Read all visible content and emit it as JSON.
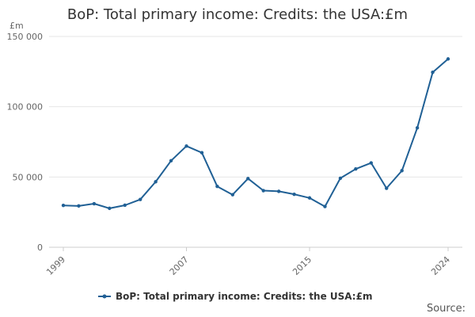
{
  "chart_data": {
    "type": "line",
    "title": "BoP: Total primary income: Credits: the USA:£m",
    "ylabel": "£m",
    "xlabel": "",
    "x": [
      1999,
      2000,
      2001,
      2002,
      2003,
      2004,
      2005,
      2006,
      2007,
      2008,
      2009,
      2010,
      2011,
      2012,
      2013,
      2014,
      2015,
      2016,
      2017,
      2018,
      2019,
      2020,
      2021,
      2022,
      2023,
      2024
    ],
    "series": [
      {
        "name": "BoP: Total primary income: Credits: the USA:£m",
        "values": [
          29800,
          29400,
          31000,
          27700,
          29900,
          34000,
          46600,
          61600,
          72000,
          67300,
          43300,
          37400,
          48900,
          40300,
          39800,
          37700,
          35100,
          29000,
          49100,
          55700,
          60000,
          42000,
          54500,
          85000,
          124500,
          134000
        ]
      }
    ],
    "ylim": [
      0,
      150000
    ],
    "yticks": [
      0,
      50000,
      100000,
      150000
    ],
    "ytick_labels": [
      "0",
      "50 000",
      "100 000",
      "150 000"
    ],
    "xticks": [
      1999,
      2007,
      2015,
      2024
    ],
    "xtick_labels": [
      "1999",
      "2007",
      "2015",
      "2024"
    ],
    "grid": true,
    "legend_position": "bottom",
    "colors": {
      "series": "#206095",
      "grid": "#e6e6e6",
      "axis": "#cccccc"
    }
  },
  "source_label": "Source:"
}
